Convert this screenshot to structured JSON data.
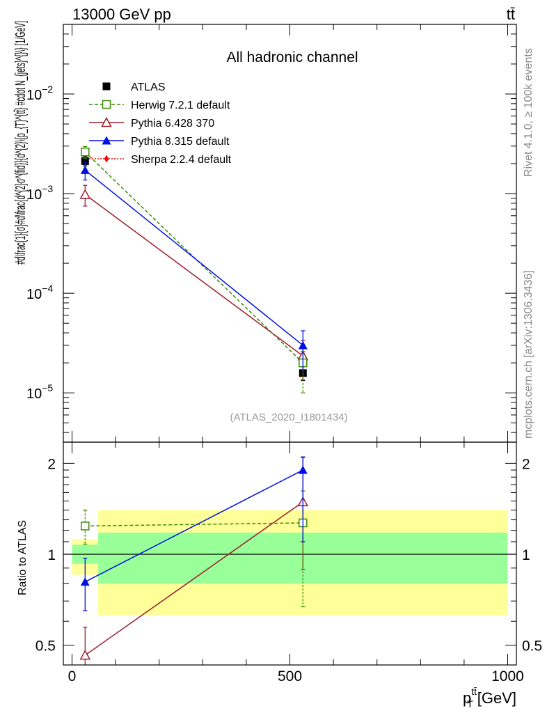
{
  "header": {
    "left": "13000 GeV pp",
    "right": "tt̄"
  },
  "side_labels": {
    "rivet": "Rivet 4.1.0, ≥ 100k events",
    "mcplots": "mcplots.cern.ch [arXiv:1306.3436]"
  },
  "colors": {
    "atlas": "#000000",
    "herwig": "#3a8c00",
    "pythia6": "#9b1c2c",
    "pythia8": "#0010e0",
    "sherpa": "#ff0000",
    "band_outer": "#ffff99",
    "band_inner": "#99ff99"
  },
  "chart_data": [
    {
      "type": "scatter",
      "panel": "main",
      "title": "All hadronic channel",
      "analysis_tag": "(ATLAS_2020_I1801434)",
      "ylabel": "#d\\frac{1}{σ}#d\\frac{d^{2}σ^{fid}}{d^{2}\\{p_{T}^{tt̄} #cdot N_{jets}^{}\\} [1/GeV]",
      "yscale": "log",
      "ylim": [
        3.2e-06,
        0.05
      ],
      "xlim": [
        -20,
        1020
      ],
      "y_ticks": [
        {
          "value": 1e-05,
          "base": "10",
          "exp": "−5"
        },
        {
          "value": 0.0001,
          "base": "10",
          "exp": "−4"
        },
        {
          "value": 0.001,
          "base": "10",
          "exp": "−3"
        },
        {
          "value": 0.01,
          "base": "10",
          "exp": "−2"
        }
      ],
      "series": [
        {
          "name": "ATLAS",
          "key": "atlas",
          "marker": "square-filled",
          "line": "none",
          "x": [
            30,
            530
          ],
          "y": [
            0.00212,
            1.58e-05
          ],
          "yerr_lo": [
            0.00022,
            2.5e-06
          ],
          "yerr_hi": [
            0.00022,
            2.5e-06
          ]
        },
        {
          "name": "Herwig 7.2.1 default",
          "key": "herwig",
          "marker": "square-open",
          "line": "dashed",
          "x": [
            30,
            530
          ],
          "y": [
            0.00262,
            2e-05
          ],
          "yerr_lo": [
            0.00035,
            1e-05
          ],
          "yerr_hi": [
            0.00035,
            6e-06
          ]
        },
        {
          "name": "Pythia 6.428 370",
          "key": "pythia6",
          "marker": "triangle-open",
          "line": "solid",
          "x": [
            30,
            530
          ],
          "y": [
            0.00098,
            2.35e-05
          ],
          "yerr_lo": [
            0.00023,
            1e-05
          ],
          "yerr_hi": [
            0.00023,
            1e-05
          ]
        },
        {
          "name": "Pythia 8.315 default",
          "key": "pythia8",
          "marker": "triangle-filled",
          "line": "solid",
          "x": [
            30,
            530
          ],
          "y": [
            0.00172,
            3e-05
          ],
          "yerr_lo": [
            0.00035,
            1.3e-05
          ],
          "yerr_hi": [
            0.00035,
            1.2e-05
          ]
        },
        {
          "name": "Sherpa 2.2.4 default",
          "key": "sherpa",
          "marker": "diamond-filled",
          "line": "dotted",
          "x": [],
          "y": []
        }
      ]
    },
    {
      "type": "scatter",
      "panel": "ratio",
      "ylabel": "Ratio to ATLAS",
      "xlabel": "p_T^{tt̄} [GeV]",
      "xlabel_main": "p",
      "xlabel_sub": "T",
      "xlabel_sup": "tt̄",
      "xlabel_unit": " [GeV]",
      "yscale": "log",
      "ylim": [
        0.43,
        2.35
      ],
      "xlim": [
        -20,
        1020
      ],
      "x_ticks": [
        0,
        500,
        1000
      ],
      "x_tick_labels": [
        "0",
        "500",
        "1000"
      ],
      "y_ticks": [
        0.5,
        1,
        2
      ],
      "y_tick_labels": [
        "0.5",
        "1",
        "2"
      ],
      "reference_line": 1,
      "bands": [
        {
          "x0": 0,
          "x1": 60,
          "outer": [
            0.855,
            1.12
          ],
          "inner": [
            0.93,
            1.075
          ]
        },
        {
          "x0": 60,
          "x1": 1000,
          "outer": [
            0.63,
            1.4
          ],
          "inner": [
            0.8,
            1.18
          ]
        }
      ],
      "series": [
        {
          "name": "Herwig 7.2.1 default",
          "key": "herwig",
          "marker": "square-open",
          "line": "dashed",
          "x": [
            30,
            530
          ],
          "y": [
            1.24,
            1.27
          ],
          "yerr_lo": [
            0.16,
            0.6
          ],
          "yerr_hi": [
            0.16,
            0.35
          ]
        },
        {
          "name": "Pythia 6.428 370",
          "key": "pythia6",
          "marker": "triangle-open",
          "line": "solid",
          "x": [
            30,
            530
          ],
          "y": [
            0.463,
            1.49
          ],
          "yerr_lo": [
            0.11,
            0.6
          ],
          "yerr_hi": [
            0.11,
            0.6
          ]
        },
        {
          "name": "Pythia 8.315 default",
          "key": "pythia8",
          "marker": "triangle-filled",
          "line": "solid",
          "x": [
            30,
            530
          ],
          "y": [
            0.81,
            1.9
          ],
          "yerr_lo": [
            0.16,
            0.8
          ],
          "yerr_hi": [
            0.16,
            0.2
          ]
        }
      ]
    }
  ]
}
